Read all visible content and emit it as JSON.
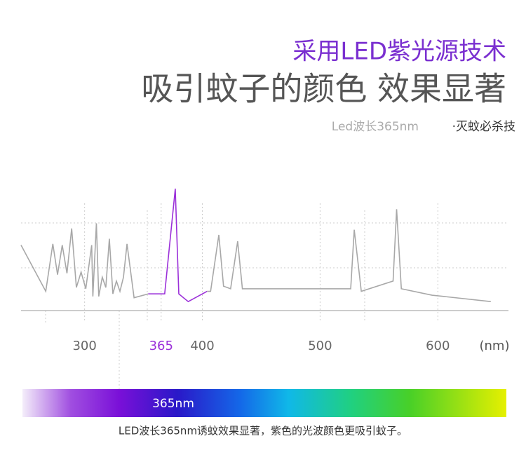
{
  "header": {
    "title": "采用LED紫光源技术",
    "headline": "吸引蚊子的颜色 效果显著",
    "tagline": "Led波长365nm",
    "tagline_tail": "·灭蚊必杀技"
  },
  "chart_data": {
    "type": "line",
    "x_unit": "(nm)",
    "xlim": [
      246,
      660
    ],
    "ylim": [
      0,
      100
    ],
    "xticks": [
      300,
      365,
      400,
      500,
      600
    ],
    "xtick_colors": [
      "#666666",
      "#9b30d9",
      "#666666",
      "#666666",
      "#666666"
    ],
    "grid": true,
    "series": [
      {
        "color": "#a8a8a8",
        "x": [
          246,
          267,
          273,
          277,
          281,
          285,
          289,
          293,
          297,
          301,
          306,
          307,
          310,
          312,
          315,
          318,
          321,
          324,
          327,
          330,
          333,
          336,
          342,
          354
        ],
        "values": [
          51,
          15,
          52,
          28,
          51,
          29,
          64,
          18,
          30,
          17,
          51,
          11,
          68,
          11,
          26,
          18,
          56,
          13,
          23,
          15,
          26,
          52,
          10,
          13
        ]
      },
      {
        "color": "#9b30d9",
        "x": [
          354,
          368,
          377,
          380,
          388,
          404
        ],
        "values": [
          13,
          13,
          95,
          13,
          7,
          15
        ]
      },
      {
        "color": "#a8a8a8",
        "x": [
          404,
          407,
          414,
          418,
          424,
          430,
          434,
          526,
          529,
          535,
          562,
          565,
          569,
          595,
          645
        ],
        "values": [
          15,
          15,
          59,
          19,
          17,
          54,
          17,
          17,
          63,
          15,
          23,
          79,
          17,
          12,
          7
        ]
      }
    ]
  },
  "spectrum": {
    "label": "365nm",
    "caption": "LED波长365nm诱蚊效果显著，紫色的光波颜色更吸引蚊子。"
  }
}
